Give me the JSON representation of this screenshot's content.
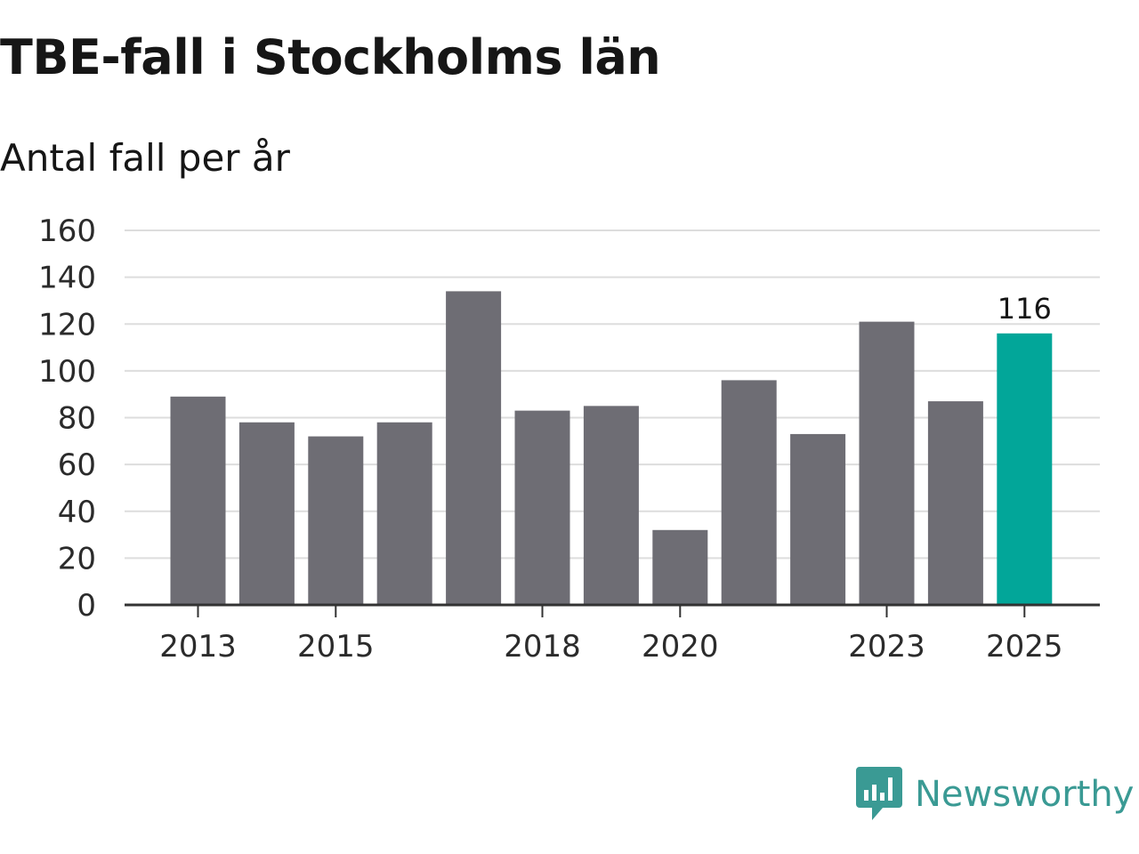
{
  "title": "TBE-fall i Stockholms län",
  "subtitle": "Antal fall per år",
  "colors": {
    "bar": "#6e6d74",
    "highlight": "#02a699",
    "grid": "#dddddd",
    "axis": "#333333",
    "brand": "#3a9a94"
  },
  "chart_data": {
    "type": "bar",
    "title": "TBE-fall i Stockholms län",
    "subtitle": "Antal fall per år",
    "xlabel": "",
    "ylabel": "",
    "categories": [
      "2013",
      "2014",
      "2015",
      "2016",
      "2017",
      "2018",
      "2019",
      "2020",
      "2021",
      "2022",
      "2023",
      "2024",
      "2025"
    ],
    "values": [
      89,
      78,
      72,
      78,
      134,
      83,
      85,
      32,
      96,
      73,
      121,
      87,
      116
    ],
    "highlight_index": 12,
    "highlight_label": "116",
    "x_tick_labels": [
      "2013",
      "2015",
      "2018",
      "2020",
      "2023",
      "2025"
    ],
    "y_ticks": [
      0,
      20,
      40,
      60,
      80,
      100,
      120,
      140,
      160
    ],
    "ylim": [
      0,
      160
    ],
    "grid": true
  },
  "logo": {
    "text": "Newsworthy",
    "icon": "bar-chart-speech-bubble-icon"
  }
}
